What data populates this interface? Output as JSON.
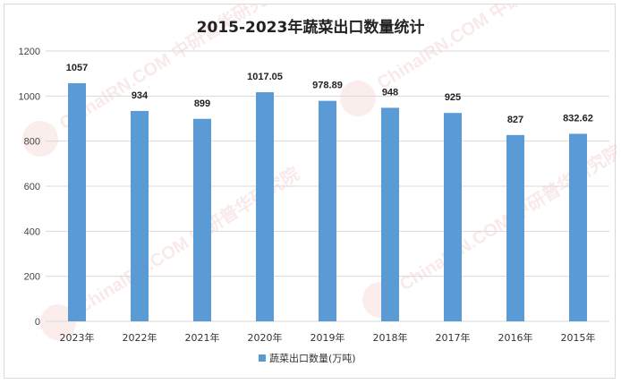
{
  "chart_data": {
    "type": "bar",
    "title": "2015-2023年蔬菜出口数量统计",
    "categories": [
      "2023年",
      "2022年",
      "2021年",
      "2020年",
      "2019年",
      "2018年",
      "2017年",
      "2016年",
      "2015年"
    ],
    "series": [
      {
        "name": "蔬菜出口数量(万吨)",
        "values": [
          1057,
          934,
          899,
          1017.05,
          978.89,
          948,
          925,
          827,
          832.62
        ],
        "labels": [
          "1057",
          "934",
          "899",
          "1017.05",
          "978.89",
          "948",
          "925",
          "827",
          "832.62"
        ]
      }
    ],
    "yticks": [
      "0",
      "200",
      "400",
      "600",
      "800",
      "1000",
      "1200"
    ],
    "ylim": [
      0,
      1200
    ],
    "grid": true,
    "legend_position": "bottom",
    "bar_color": "#5b9bd5",
    "watermark": "ChinaIRN.COM 中研普华研究院"
  }
}
